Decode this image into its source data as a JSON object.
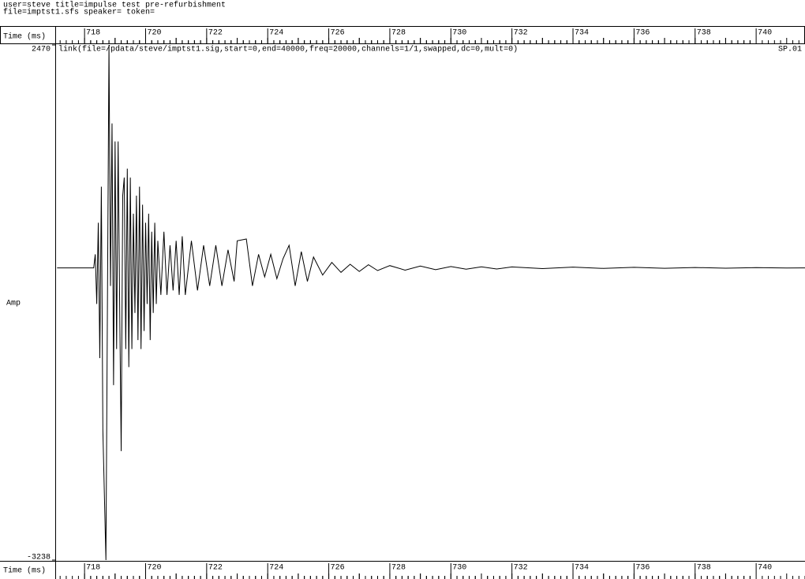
{
  "chart_data": {
    "type": "line",
    "header_lines": [
      "user=steve title=impulse test pre-refurbishment",
      "file=imptst1.sfs speaker= token="
    ],
    "xlabel": "Time (ms)",
    "ylabel": "Amp",
    "annotation": "link(file=/pdata/steve/imptst1.sig,start=0,end=40000,freq=20000,channels=1/1,swapped,dc=0,mult=0)",
    "track_label": "SP.01",
    "color": "#000000",
    "xlim": [
      717.04,
      741.6
    ],
    "xticks": [
      718,
      720,
      722,
      724,
      726,
      728,
      730,
      732,
      734,
      736,
      738,
      740
    ],
    "ylim": [
      -3238,
      2470
    ],
    "yticks": [
      2470,
      -3238
    ],
    "x": [
      717.1,
      718.0,
      718.3,
      718.35,
      718.4,
      718.45,
      718.5,
      718.55,
      718.6,
      718.7,
      718.8,
      718.85,
      718.9,
      718.95,
      719.0,
      719.05,
      719.1,
      719.15,
      719.2,
      719.25,
      719.3,
      719.35,
      719.4,
      719.45,
      719.5,
      719.55,
      719.6,
      719.65,
      719.7,
      719.75,
      719.8,
      719.85,
      719.9,
      719.95,
      720.0,
      720.05,
      720.1,
      720.15,
      720.2,
      720.25,
      720.3,
      720.35,
      720.4,
      720.5,
      720.6,
      720.7,
      720.8,
      720.9,
      721.0,
      721.1,
      721.2,
      721.3,
      721.5,
      721.7,
      721.9,
      722.1,
      722.3,
      722.5,
      722.7,
      722.9,
      723.0,
      723.3,
      723.5,
      723.7,
      723.9,
      724.1,
      724.3,
      724.5,
      724.7,
      724.9,
      725.1,
      725.3,
      725.5,
      725.8,
      726.1,
      726.4,
      726.7,
      727.0,
      727.3,
      727.6,
      728.0,
      728.5,
      729.0,
      729.5,
      730.0,
      730.5,
      731.0,
      731.5,
      732.0,
      733.0,
      734.0,
      735.0,
      736.0,
      737.0,
      738.0,
      739.0,
      740.0,
      741.0,
      741.6
    ],
    "values": [
      0,
      0,
      0,
      150,
      -400,
      500,
      -1000,
      900,
      -1800,
      -3238,
      2470,
      -200,
      1600,
      -1300,
      1400,
      -900,
      1400,
      -400,
      -2031,
      800,
      1000,
      -900,
      1100,
      -1100,
      1000,
      -900,
      600,
      -500,
      800,
      -800,
      900,
      -900,
      700,
      -700,
      500,
      -400,
      600,
      -800,
      400,
      -500,
      500,
      -400,
      300,
      -300,
      400,
      -300,
      250,
      -250,
      300,
      -300,
      350,
      -300,
      300,
      -250,
      250,
      -200,
      250,
      -200,
      200,
      -150,
      300,
      320,
      -200,
      150,
      -100,
      150,
      -120,
      100,
      250,
      -200,
      180,
      -150,
      120,
      -80,
      60,
      -50,
      40,
      -40,
      35,
      -30,
      25,
      -25,
      20,
      -20,
      15,
      -15,
      12,
      -12,
      10,
      -8,
      8,
      -6,
      6,
      -5,
      4,
      -4,
      3,
      -2,
      0
    ]
  }
}
